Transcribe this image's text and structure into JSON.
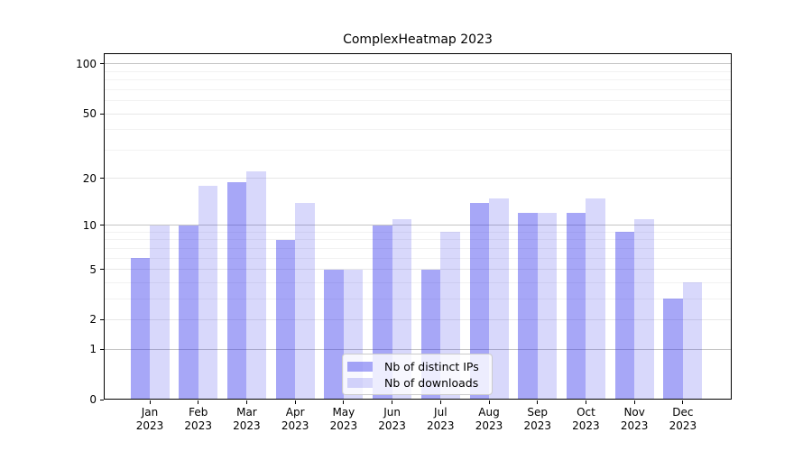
{
  "title": "ComplexHeatmap 2023",
  "chart_data": {
    "type": "bar",
    "title": "ComplexHeatmap 2023",
    "categories": [
      "Jan 2023",
      "Feb 2023",
      "Mar 2023",
      "Apr 2023",
      "May 2023",
      "Jun 2023",
      "Jul 2023",
      "Aug 2023",
      "Sep 2023",
      "Oct 2023",
      "Nov 2023",
      "Dec 2023"
    ],
    "series": [
      {
        "name": "Nb of distinct IPs",
        "color": "rgba(45,45,235,0.42)",
        "values": [
          6,
          10,
          19,
          8,
          5,
          10,
          5,
          14,
          12,
          12,
          9,
          3
        ]
      },
      {
        "name": "Nb of downloads",
        "color": "rgba(45,45,235,0.185)",
        "values": [
          10,
          18,
          22,
          14,
          5,
          11,
          9,
          15,
          12,
          15,
          11,
          4
        ]
      }
    ],
    "xlabel": "",
    "ylabel": "",
    "y_scale": "log1p",
    "y_ticks": [
      0,
      1,
      2,
      5,
      10,
      20,
      50,
      100
    ],
    "y_minor_ticks": [
      3,
      4,
      6,
      7,
      8,
      9,
      30,
      40,
      60,
      70,
      80,
      90
    ],
    "ylim": [
      0,
      117
    ],
    "grid": "horizontal",
    "legend": {
      "position": "lower-center-inside",
      "entries": [
        "Nb of distinct IPs",
        "Nb of downloads"
      ]
    }
  },
  "colors": {
    "background": "#ffffff",
    "bar_dark": "rgba(45,45,235,0.42)",
    "bar_light": "rgba(45,45,235,0.185)",
    "grid_decade": "#c4c4c4",
    "grid_major": "#e7e7e7",
    "grid_minor": "#f2f2f2",
    "axis": "#000000"
  }
}
